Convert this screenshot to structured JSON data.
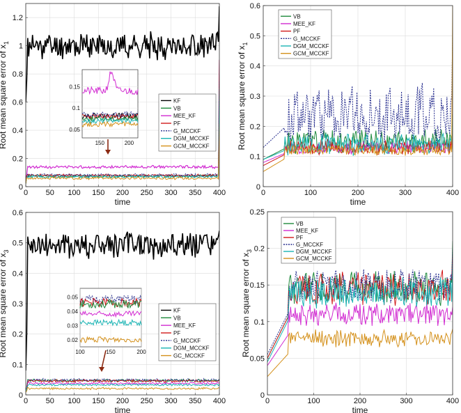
{
  "chart_data": [
    {
      "type": "line",
      "ylabel": "Root mean square error of x",
      "ylabel_sub": "1",
      "xlabel": "time",
      "xlim": [
        0,
        400
      ],
      "ylim": [
        0,
        1.3
      ],
      "xticks": [
        0,
        50,
        100,
        150,
        200,
        250,
        300,
        350,
        400
      ],
      "yticks": [
        0,
        0.2,
        0.4,
        0.6,
        0.8,
        1,
        1.2
      ],
      "ytick_labels": [
        "0",
        "0.2",
        "0.4",
        "0.6",
        "0.8",
        "1",
        "1.2"
      ],
      "grid": true,
      "legend_position": "right-middle",
      "series": [
        {
          "name": "KF",
          "color": "#000000",
          "dash": "",
          "width": 1.6,
          "base": 1.0,
          "amp": 0.08,
          "seed": 11,
          "start": 0.6,
          "riseAt": 3,
          "endSpike": 1.28
        },
        {
          "name": "VB",
          "color": "#1e8a3c",
          "dash": "",
          "width": 1,
          "base": 0.075,
          "amp": 0.009,
          "seed": 12,
          "start": 0.02,
          "riseAt": 2,
          "endSpike": 0.72
        },
        {
          "name": "MEE_KF",
          "color": "#d12ad1",
          "dash": "",
          "width": 1.2,
          "base": 0.14,
          "amp": 0.009,
          "seed": 13,
          "start": 0.05,
          "riseAt": 3,
          "endSpike": 0.9
        },
        {
          "name": "PF",
          "color": "#d11a1a",
          "dash": "",
          "width": 1,
          "base": 0.08,
          "amp": 0.008,
          "seed": 14,
          "start": 0.02,
          "riseAt": 2,
          "endSpike": 0.9
        },
        {
          "name": "G_MCCKF",
          "color": "#232a8c",
          "dash": "2,1.5",
          "width": 1,
          "base": 0.082,
          "amp": 0.009,
          "seed": 15,
          "start": 0.03,
          "riseAt": 2,
          "endSpike": 0.75
        },
        {
          "name": "DGM_MCCKF",
          "color": "#19b3b3",
          "dash": "",
          "width": 1,
          "base": 0.07,
          "amp": 0.008,
          "seed": 16,
          "start": 0.02,
          "riseAt": 2,
          "endSpike": 0.7
        },
        {
          "name": "GCM_MCCKF",
          "color": "#d4901a",
          "dash": "",
          "width": 1,
          "base": 0.06,
          "amp": 0.008,
          "seed": 17,
          "start": 0.02,
          "riseAt": 2,
          "endSpike": 0.45
        }
      ],
      "inset": {
        "xlim": [
          120,
          215
        ],
        "ylim": [
          0.03,
          0.19
        ],
        "xticks": [
          150,
          200
        ],
        "yticks": [
          0.05,
          0.1,
          0.15
        ],
        "ytick_labels": [
          "0.05",
          "0.1",
          "0.15"
        ],
        "series": [
          {
            "ref": 2,
            "base": 0.14,
            "amp": 0.009,
            "seed": 21,
            "bump": 0.045
          },
          {
            "ref": 0,
            "base": 0.082,
            "amp": 0.006,
            "seed": 22,
            "bump": 0.0
          },
          {
            "ref": 3,
            "base": 0.08,
            "amp": 0.006,
            "seed": 23,
            "bump": 0.0
          },
          {
            "ref": 4,
            "base": 0.085,
            "amp": 0.006,
            "seed": 24,
            "bump": 0.0
          },
          {
            "ref": 1,
            "base": 0.075,
            "amp": 0.006,
            "seed": 25,
            "bump": 0.0
          },
          {
            "ref": 5,
            "base": 0.07,
            "amp": 0.006,
            "seed": 26,
            "bump": 0.0
          },
          {
            "ref": 6,
            "base": 0.062,
            "amp": 0.006,
            "seed": 27,
            "bump": 0.0
          }
        ]
      }
    },
    {
      "type": "line",
      "ylabel": "Root mean square error of x",
      "ylabel_sub": "1",
      "xlabel": "time",
      "xlim": [
        0,
        400
      ],
      "ylim": [
        0,
        0.6
      ],
      "xticks": [
        0,
        100,
        200,
        300,
        400
      ],
      "yticks": [
        0,
        0.1,
        0.2,
        0.3,
        0.4,
        0.5,
        0.6
      ],
      "ytick_labels": [
        "0",
        "0.1",
        "0.2",
        "0.3",
        "0.4",
        "0.5",
        "0.6"
      ],
      "grid": true,
      "legend_position": "top-left",
      "series": [
        {
          "name": "VB",
          "color": "#1e8a3c",
          "dash": "",
          "width": 1,
          "base": 0.15,
          "amp": 0.035,
          "seed": 31,
          "start": 0.09,
          "riseAt": 45,
          "endSpike": 0.24
        },
        {
          "name": "MEE_KF",
          "color": "#d12ad1",
          "dash": "",
          "width": 1,
          "base": 0.13,
          "amp": 0.018,
          "seed": 32,
          "start": 0.08,
          "riseAt": 45,
          "endSpike": 0.2
        },
        {
          "name": "PF",
          "color": "#d11a1a",
          "dash": "",
          "width": 1,
          "base": 0.13,
          "amp": 0.022,
          "seed": 33,
          "start": 0.07,
          "riseAt": 45,
          "endSpike": 0.2
        },
        {
          "name": "G_MCCKF",
          "color": "#232a8c",
          "dash": "2,1.5",
          "width": 1,
          "base": 0.24,
          "amp": 0.09,
          "seed": 34,
          "start": 0.13,
          "riseAt": 45,
          "endSpike": 0.5
        },
        {
          "name": "DGM_MCCKF",
          "color": "#19b3b3",
          "dash": "",
          "width": 1,
          "base": 0.14,
          "amp": 0.03,
          "seed": 35,
          "start": 0.09,
          "riseAt": 45,
          "endSpike": 0.22
        },
        {
          "name": "GCM_MCCKF",
          "color": "#d4901a",
          "dash": "",
          "width": 1,
          "base": 0.12,
          "amp": 0.015,
          "seed": 36,
          "start": 0.05,
          "riseAt": 45,
          "endSpike": 0.6
        }
      ]
    },
    {
      "type": "line",
      "ylabel": "Root mean square error of x",
      "ylabel_sub": "3",
      "xlabel": "time",
      "xlim": [
        0,
        400
      ],
      "ylim": [
        0,
        0.6
      ],
      "xticks": [
        0,
        50,
        100,
        150,
        200,
        250,
        300,
        350,
        400
      ],
      "yticks": [
        0,
        0.1,
        0.2,
        0.3,
        0.4,
        0.5,
        0.6
      ],
      "ytick_labels": [
        "0",
        "0.1",
        "0.2",
        "0.3",
        "0.4",
        "0.5",
        "0.6"
      ],
      "grid": true,
      "legend_position": "right-middle",
      "series": [
        {
          "name": "KF",
          "color": "#000000",
          "dash": "",
          "width": 1.6,
          "base": 0.49,
          "amp": 0.04,
          "seed": 41,
          "start": 0.08,
          "riseAt": 4,
          "endSpike": 0.54
        },
        {
          "name": "VB",
          "color": "#1e8a3c",
          "dash": "",
          "width": 1,
          "base": 0.047,
          "amp": 0.004,
          "seed": 42,
          "start": 0.01,
          "riseAt": 3,
          "endSpike": 0.05
        },
        {
          "name": "MEE_KF",
          "color": "#d12ad1",
          "dash": "",
          "width": 1,
          "base": 0.038,
          "amp": 0.003,
          "seed": 43,
          "start": 0.01,
          "riseAt": 3,
          "endSpike": 0.04
        },
        {
          "name": "PF",
          "color": "#d11a1a",
          "dash": "",
          "width": 1,
          "base": 0.046,
          "amp": 0.004,
          "seed": 44,
          "start": 0.01,
          "riseAt": 3,
          "endSpike": 0.05
        },
        {
          "name": "G_MCCKF",
          "color": "#232a8c",
          "dash": "2,1.5",
          "width": 1,
          "base": 0.049,
          "amp": 0.004,
          "seed": 45,
          "start": 0.01,
          "riseAt": 3,
          "endSpike": 0.052
        },
        {
          "name": "DGM_MCCKF",
          "color": "#19b3b3",
          "dash": "",
          "width": 1,
          "base": 0.033,
          "amp": 0.003,
          "seed": 46,
          "start": 0.01,
          "riseAt": 3,
          "endSpike": 0.035
        },
        {
          "name": "GC_MCCKF",
          "color": "#d4901a",
          "dash": "",
          "width": 1,
          "base": 0.021,
          "amp": 0.003,
          "seed": 47,
          "start": 0.008,
          "riseAt": 3,
          "endSpike": 0.022
        }
      ],
      "inset": {
        "xlim": [
          100,
          200
        ],
        "ylim": [
          0.015,
          0.056
        ],
        "xticks": [
          100,
          150,
          200
        ],
        "yticks": [
          0.02,
          0.03,
          0.04,
          0.05
        ],
        "ytick_labels": [
          "0.02",
          "0.03",
          "0.04",
          "0.05"
        ],
        "series": [
          {
            "ref": 4,
            "base": 0.048,
            "amp": 0.003,
            "seed": 51,
            "bump": 0.0
          },
          {
            "ref": 3,
            "base": 0.046,
            "amp": 0.003,
            "seed": 52,
            "bump": 0.0
          },
          {
            "ref": 1,
            "base": 0.045,
            "amp": 0.003,
            "seed": 53,
            "bump": 0.0
          },
          {
            "ref": 2,
            "base": 0.038,
            "amp": 0.002,
            "seed": 54,
            "bump": 0.0
          },
          {
            "ref": 5,
            "base": 0.032,
            "amp": 0.002,
            "seed": 55,
            "bump": 0.0
          },
          {
            "ref": 6,
            "base": 0.02,
            "amp": 0.002,
            "seed": 56,
            "bump": 0.0
          }
        ]
      }
    },
    {
      "type": "line",
      "ylabel": "Root mean square error of x",
      "ylabel_sub": "3",
      "xlabel": "time",
      "xlim": [
        0,
        400
      ],
      "ylim": [
        0,
        0.25
      ],
      "xticks": [
        0,
        100,
        200,
        300,
        400
      ],
      "yticks": [
        0,
        0.05,
        0.1,
        0.15,
        0.2,
        0.25
      ],
      "ytick_labels": [
        "0",
        "0.05",
        "0.1",
        "0.15",
        "0.2",
        "0.25"
      ],
      "grid": true,
      "legend_position": "top-left",
      "series": [
        {
          "name": "VB",
          "color": "#1e8a3c",
          "dash": "",
          "width": 1,
          "base": 0.145,
          "amp": 0.02,
          "seed": 61,
          "start": 0.05,
          "riseAt": 45,
          "endSpike": 0.21
        },
        {
          "name": "MEE_KF",
          "color": "#d12ad1",
          "dash": "",
          "width": 1,
          "base": 0.11,
          "amp": 0.013,
          "seed": 62,
          "start": 0.04,
          "riseAt": 45,
          "endSpike": 0.12
        },
        {
          "name": "PF",
          "color": "#d11a1a",
          "dash": "",
          "width": 1,
          "base": 0.145,
          "amp": 0.02,
          "seed": 63,
          "start": 0.05,
          "riseAt": 45,
          "endSpike": 0.19
        },
        {
          "name": "G_MCCKF",
          "color": "#232a8c",
          "dash": "2,1.5",
          "width": 1,
          "base": 0.15,
          "amp": 0.02,
          "seed": 64,
          "start": 0.055,
          "riseAt": 45,
          "endSpike": 0.2
        },
        {
          "name": "DGM_MCCKF",
          "color": "#19b3b3",
          "dash": "",
          "width": 1,
          "base": 0.14,
          "amp": 0.018,
          "seed": 65,
          "start": 0.045,
          "riseAt": 45,
          "endSpike": 0.18
        },
        {
          "name": "GCM_MCCKF",
          "color": "#d4901a",
          "dash": "",
          "width": 1,
          "base": 0.077,
          "amp": 0.01,
          "seed": 66,
          "start": 0.025,
          "riseAt": 45,
          "endSpike": 0.09
        }
      ]
    }
  ]
}
